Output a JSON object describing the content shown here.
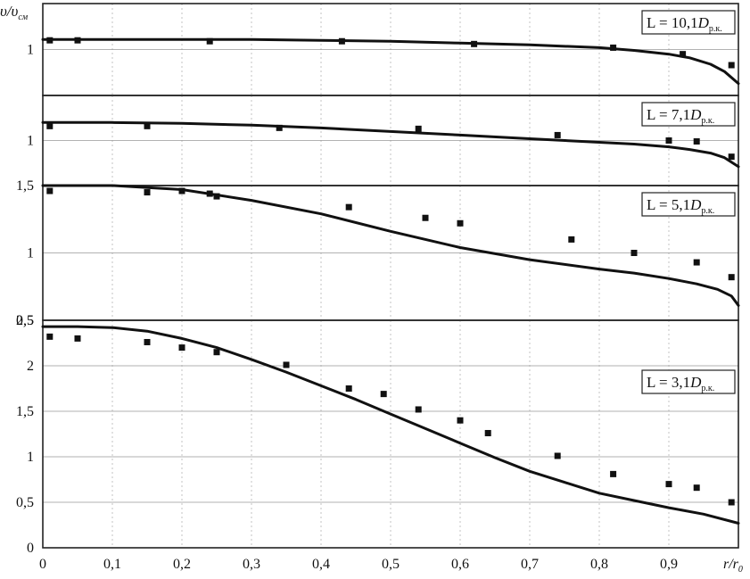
{
  "chart_data": {
    "type": "scatter",
    "ylabel": "υ/υ",
    "ylabel_sub": "см",
    "xlabel": "r/r",
    "xlabel_sub": "0",
    "xlim": [
      0,
      1
    ],
    "x_ticks": [
      "0",
      "0,1",
      "0,2",
      "0,3",
      "0,4",
      "0,5",
      "0,6",
      "0,7",
      "0,8",
      "0,9"
    ],
    "x_tick_values": [
      0,
      0.1,
      0.2,
      0.3,
      0.4,
      0.5,
      0.6,
      0.7,
      0.8,
      0.9
    ],
    "grid": true,
    "panels": [
      {
        "legend_prefix": "L = 10,1",
        "legend_D": "D",
        "legend_sub": "р.к.",
        "ylim": [
          0.5,
          1.5
        ],
        "y_ticks": [
          0.5,
          1
        ],
        "y_tick_labels": [
          "0,5",
          "1"
        ],
        "y_tick_labels_shown": [
          false,
          true
        ],
        "series": [
          {
            "kind": "markers",
            "x": [
              0.01,
              0.05,
              0.24,
              0.43,
              0.62,
              0.82,
              0.92,
              0.99
            ],
            "y": [
              1.1,
              1.1,
              1.09,
              1.09,
              1.06,
              1.02,
              0.95,
              0.83
            ]
          },
          {
            "kind": "line",
            "x": [
              0,
              0.1,
              0.2,
              0.3,
              0.4,
              0.5,
              0.6,
              0.7,
              0.8,
              0.85,
              0.9,
              0.93,
              0.96,
              0.98,
              1.0
            ],
            "y": [
              1.11,
              1.11,
              1.11,
              1.11,
              1.1,
              1.09,
              1.07,
              1.05,
              1.02,
              0.99,
              0.95,
              0.91,
              0.84,
              0.76,
              0.63
            ]
          }
        ]
      },
      {
        "legend_prefix": "L = 7,1",
        "legend_D": "D",
        "legend_sub": "р.к.",
        "ylim": [
          0.5,
          1.5
        ],
        "y_ticks": [
          0.5,
          1
        ],
        "y_tick_labels": [
          "0,5",
          "1"
        ],
        "y_tick_labels_shown": [
          false,
          true
        ],
        "series": [
          {
            "kind": "markers",
            "x": [
              0.01,
              0.15,
              0.34,
              0.54,
              0.74,
              0.9,
              0.94,
              0.99
            ],
            "y": [
              1.16,
              1.16,
              1.14,
              1.13,
              1.06,
              1.0,
              0.99,
              0.82
            ]
          },
          {
            "kind": "line",
            "x": [
              0,
              0.1,
              0.2,
              0.3,
              0.4,
              0.5,
              0.6,
              0.7,
              0.8,
              0.85,
              0.9,
              0.93,
              0.96,
              0.98,
              1.0
            ],
            "y": [
              1.2,
              1.2,
              1.19,
              1.17,
              1.14,
              1.1,
              1.06,
              1.02,
              0.98,
              0.96,
              0.93,
              0.9,
              0.86,
              0.81,
              0.71
            ]
          }
        ]
      },
      {
        "legend_prefix": "L = 5,1",
        "legend_D": "D",
        "legend_sub": "р.к.",
        "ylim": [
          0.5,
          1.5
        ],
        "y_ticks": [
          0.5,
          1,
          1.5
        ],
        "y_tick_labels": [
          "0,5",
          "1",
          "1,5"
        ],
        "y_tick_labels_shown": [
          true,
          true,
          true
        ],
        "series": [
          {
            "kind": "markers",
            "x": [
              0.01,
              0.15,
              0.2,
              0.24,
              0.25,
              0.44,
              0.55,
              0.6,
              0.76,
              0.85,
              0.94,
              0.99
            ],
            "y": [
              1.46,
              1.45,
              1.46,
              1.44,
              1.42,
              1.34,
              1.26,
              1.22,
              1.1,
              1.0,
              0.93,
              0.82
            ]
          },
          {
            "kind": "line",
            "x": [
              0,
              0.1,
              0.2,
              0.3,
              0.4,
              0.5,
              0.6,
              0.7,
              0.8,
              0.85,
              0.9,
              0.94,
              0.97,
              0.99,
              1.0
            ],
            "y": [
              1.5,
              1.5,
              1.47,
              1.39,
              1.29,
              1.16,
              1.04,
              0.95,
              0.88,
              0.85,
              0.81,
              0.77,
              0.73,
              0.68,
              0.61
            ]
          }
        ]
      },
      {
        "legend_prefix": "L = 3,1",
        "legend_D": "D",
        "legend_sub": "р.к.",
        "ylim": [
          0,
          2.5
        ],
        "y_ticks": [
          0,
          0.5,
          1,
          1.5,
          2,
          2.5
        ],
        "y_tick_labels": [
          "0",
          "0,5",
          "1",
          "1,5",
          "2",
          "2,5"
        ],
        "y_tick_labels_shown": [
          true,
          true,
          true,
          true,
          true,
          true
        ],
        "series": [
          {
            "kind": "markers",
            "x": [
              0.01,
              0.05,
              0.15,
              0.2,
              0.25,
              0.35,
              0.44,
              0.49,
              0.54,
              0.6,
              0.64,
              0.74,
              0.82,
              0.9,
              0.94,
              0.99
            ],
            "y": [
              2.32,
              2.3,
              2.26,
              2.2,
              2.15,
              2.01,
              1.75,
              1.69,
              1.52,
              1.4,
              1.26,
              1.01,
              0.81,
              0.7,
              0.66,
              0.5
            ]
          },
          {
            "kind": "line",
            "x": [
              0,
              0.05,
              0.1,
              0.15,
              0.2,
              0.25,
              0.3,
              0.35,
              0.4,
              0.45,
              0.5,
              0.55,
              0.6,
              0.65,
              0.7,
              0.75,
              0.8,
              0.85,
              0.9,
              0.95,
              1.0
            ],
            "y": [
              2.43,
              2.43,
              2.42,
              2.38,
              2.3,
              2.2,
              2.07,
              1.93,
              1.78,
              1.63,
              1.47,
              1.31,
              1.15,
              0.99,
              0.84,
              0.72,
              0.6,
              0.52,
              0.44,
              0.37,
              0.27
            ]
          }
        ]
      }
    ]
  }
}
